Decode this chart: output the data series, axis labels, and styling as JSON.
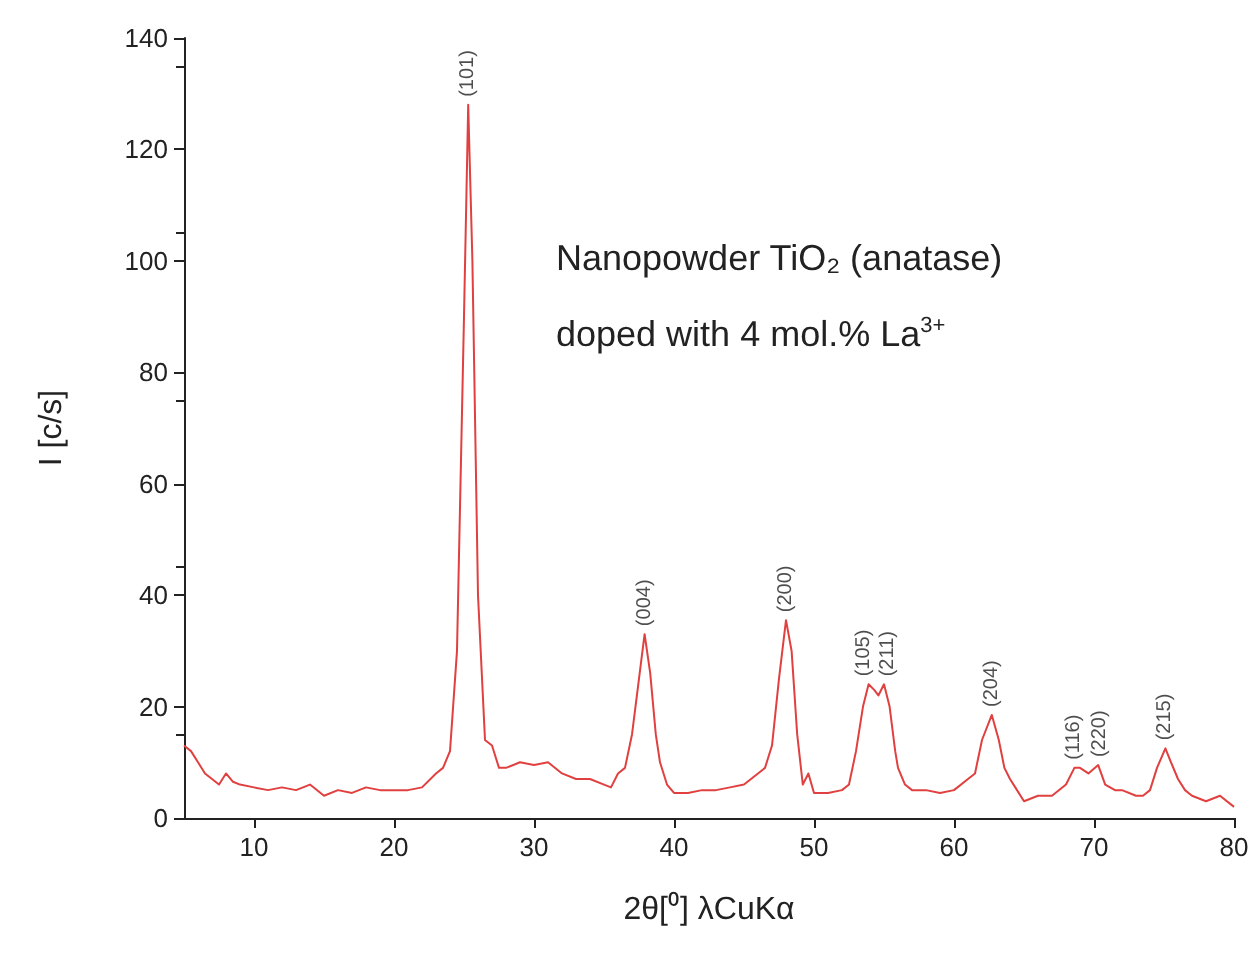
{
  "chart_data": {
    "type": "line",
    "xlabel": "2θ[⁰] λCuKα",
    "ylabel": "I [c/s]",
    "xlim": [
      5,
      80
    ],
    "xticks": [
      10,
      20,
      30,
      40,
      50,
      60,
      70,
      80
    ],
    "ylim": [
      0,
      140
    ],
    "yticks": [
      0,
      20,
      40,
      60,
      80,
      100,
      120,
      140
    ],
    "grid": false,
    "marker": "none",
    "line_style": "solid",
    "series": [
      {
        "color": "#e0403f",
        "x": [
          5,
          5.5,
          6,
          6.5,
          7,
          7.5,
          8,
          8.5,
          9,
          10,
          11,
          12,
          13,
          14,
          15,
          16,
          17,
          18,
          19,
          20,
          21,
          22,
          23,
          23.5,
          24,
          24.5,
          25,
          25.3,
          25.6,
          26,
          26.5,
          27,
          27.5,
          28,
          29,
          30,
          31,
          32,
          33,
          34,
          35,
          35.5,
          36,
          36.5,
          37,
          37.5,
          37.9,
          38.3,
          38.7,
          39,
          39.5,
          40,
          41,
          42,
          43,
          44,
          45,
          46,
          46.5,
          47,
          47.5,
          48,
          48.4,
          48.8,
          49.2,
          49.6,
          50,
          51,
          52,
          52.5,
          53,
          53.5,
          53.9,
          54.3,
          54.6,
          55,
          55.4,
          55.8,
          56,
          56.5,
          57,
          58,
          59,
          60,
          61,
          61.5,
          62,
          62.7,
          63.2,
          63.6,
          64,
          64.5,
          65,
          66,
          67,
          68,
          68.6,
          69,
          69.6,
          70.3,
          70.8,
          71.5,
          72,
          73,
          73.5,
          74,
          74.5,
          75.1,
          75.5,
          76,
          76.5,
          77,
          78,
          79,
          80
        ],
        "values": [
          13,
          12,
          10,
          8,
          7,
          6,
          8,
          6.5,
          6,
          5.5,
          5,
          5.5,
          5,
          6,
          4,
          5,
          4.5,
          5.5,
          5,
          5,
          5,
          5.5,
          8,
          9,
          12,
          30,
          90,
          128,
          100,
          40,
          14,
          13,
          9,
          9,
          10,
          9.5,
          10,
          8,
          7,
          7,
          6,
          5.5,
          8,
          9,
          15,
          25,
          33,
          26,
          15,
          10,
          6,
          4.5,
          4.5,
          5,
          5,
          5.5,
          6,
          8,
          9,
          13,
          25,
          35.5,
          30,
          15,
          6,
          8,
          4.5,
          4.5,
          5,
          6,
          12,
          20,
          24,
          23,
          22,
          24,
          20,
          12,
          9,
          6,
          5,
          5,
          4.5,
          5,
          7,
          8,
          14,
          18.5,
          14,
          9,
          7,
          5,
          3,
          4,
          4,
          6,
          9,
          9,
          8,
          9.5,
          6,
          5,
          5,
          4,
          4,
          5,
          9,
          12.5,
          10,
          7,
          5,
          4,
          3,
          4,
          2
        ]
      }
    ],
    "annotations": [
      {
        "text": "(101)",
        "x": 25.3,
        "y": 128
      },
      {
        "text": "(004)",
        "x": 37.9,
        "y": 33
      },
      {
        "text": "(200)",
        "x": 48,
        "y": 35.5
      },
      {
        "text": "(105)",
        "x": 53.6,
        "y": 24
      },
      {
        "text": "(211)",
        "x": 55.3,
        "y": 24
      },
      {
        "text": "(204)",
        "x": 62.7,
        "y": 18.5
      },
      {
        "text": "(116)",
        "x": 68.6,
        "y": 9
      },
      {
        "text": "(220)",
        "x": 70.4,
        "y": 9.5
      },
      {
        "text": "(215)",
        "x": 75.1,
        "y": 12.5
      },
      "Nanopowder TiO₂ (anatase)",
      "doped with 4 mol.% La$^{3+}$"
    ]
  }
}
